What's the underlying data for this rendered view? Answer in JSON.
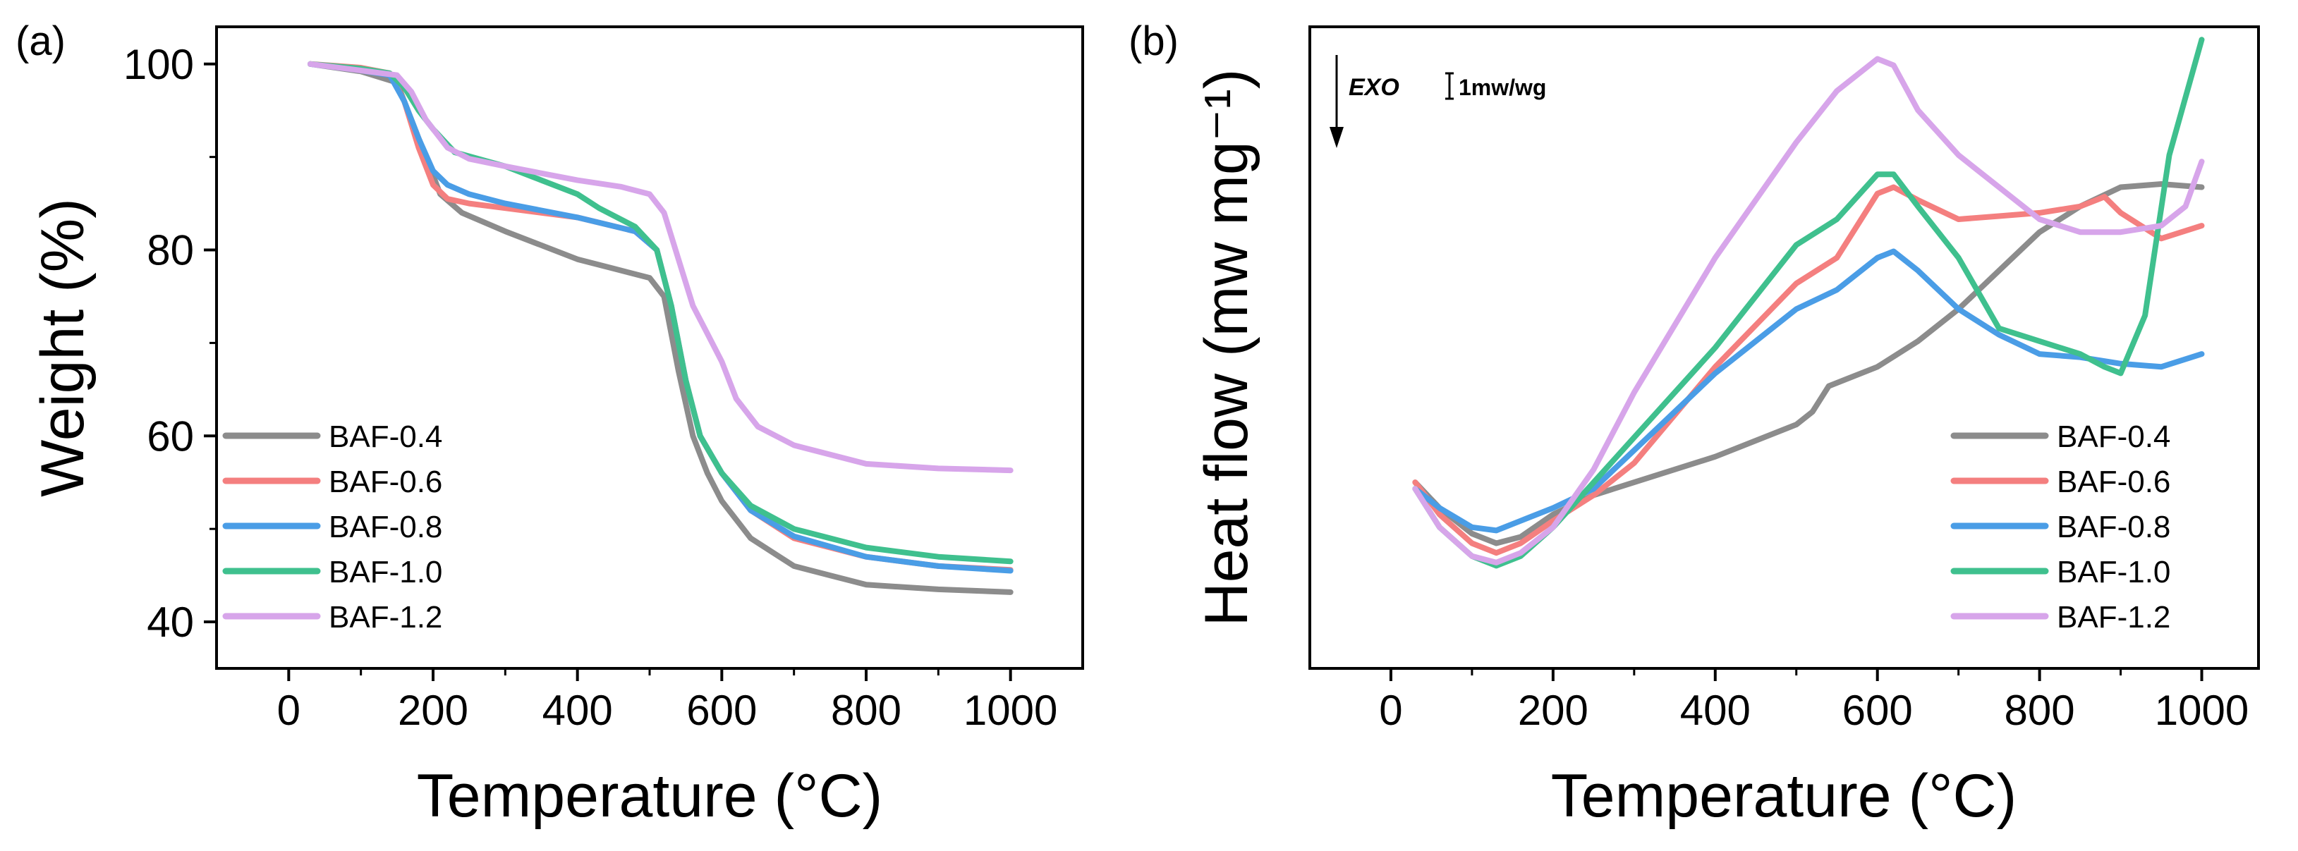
{
  "chart_data": [
    {
      "panel_label": "(a)",
      "type": "line",
      "title": "",
      "xlabel": "Temperature (°C)",
      "ylabel": "Weight (%)",
      "xlim": [
        -100,
        1100
      ],
      "ylim": [
        35,
        104
      ],
      "xticks": [
        0,
        200,
        400,
        600,
        800,
        1000
      ],
      "yticks": [
        40,
        60,
        80,
        100
      ],
      "xtick_labels": [
        "0",
        "200",
        "400",
        "600",
        "800",
        "1000"
      ],
      "ytick_labels": [
        "40",
        "60",
        "80",
        "100"
      ],
      "legend_position": "bottom-left",
      "series": [
        {
          "name": "BAF-0.4",
          "color": "#8c8c8c",
          "x": [
            30,
            100,
            150,
            170,
            190,
            210,
            240,
            300,
            400,
            450,
            500,
            520,
            540,
            560,
            580,
            600,
            640,
            680,
            700,
            750,
            800,
            900,
            1000
          ],
          "y": [
            100,
            99.2,
            98,
            94,
            90,
            86,
            84,
            82,
            79,
            78,
            77,
            75,
            67,
            60,
            56,
            53,
            49,
            47,
            46,
            45,
            44,
            43.5,
            43.2
          ]
        },
        {
          "name": "BAF-0.6",
          "color": "#f47f7f",
          "x": [
            30,
            100,
            140,
            160,
            180,
            200,
            220,
            250,
            300,
            400,
            480,
            510,
            530,
            550,
            570,
            600,
            640,
            700,
            800,
            900,
            1000
          ],
          "y": [
            100,
            99.6,
            99,
            96,
            91,
            87,
            85.5,
            85,
            84.5,
            83.5,
            82,
            80,
            74,
            66,
            60,
            56,
            52,
            49,
            47,
            46,
            45.6
          ]
        },
        {
          "name": "BAF-0.8",
          "color": "#4a9de6",
          "x": [
            30,
            100,
            140,
            160,
            180,
            200,
            220,
            250,
            300,
            400,
            480,
            510,
            530,
            550,
            570,
            600,
            640,
            700,
            800,
            900,
            1000
          ],
          "y": [
            100,
            99.3,
            98.8,
            96,
            92,
            88.5,
            87,
            86,
            85,
            83.5,
            82,
            80,
            74,
            66,
            60,
            56,
            52,
            49.2,
            47,
            46,
            45.5
          ]
        },
        {
          "name": "BAF-1.0",
          "color": "#3fc08e",
          "x": [
            30,
            100,
            140,
            160,
            180,
            200,
            230,
            300,
            350,
            400,
            430,
            480,
            510,
            530,
            550,
            570,
            600,
            640,
            700,
            800,
            900,
            1000
          ],
          "y": [
            100,
            99.5,
            99,
            97.5,
            95,
            93,
            90.5,
            89,
            87.5,
            86,
            84.5,
            82.5,
            80,
            74,
            66,
            60,
            56,
            52.5,
            50,
            48,
            47,
            46.5
          ]
        },
        {
          "name": "BAF-1.2",
          "color": "#d7a5ea",
          "x": [
            30,
            100,
            150,
            170,
            190,
            220,
            250,
            300,
            400,
            460,
            500,
            520,
            540,
            560,
            580,
            600,
            620,
            650,
            700,
            800,
            900,
            1000
          ],
          "y": [
            100,
            99.3,
            98.8,
            97,
            94,
            91,
            89.8,
            89,
            87.5,
            86.8,
            86,
            84,
            79,
            74,
            71,
            68,
            64,
            61,
            59,
            57,
            56.5,
            56.3
          ]
        }
      ]
    },
    {
      "panel_label": "(b)",
      "type": "line",
      "title": "",
      "xlabel": "Temperature (°C)",
      "ylabel": "Heat flow (mw mg⁻¹)",
      "xlim": [
        -100,
        1070
      ],
      "ylim": [
        0,
        100
      ],
      "xticks": [
        0,
        200,
        400,
        600,
        800,
        1000
      ],
      "xtick_labels": [
        "0",
        "200",
        "400",
        "600",
        "800",
        "1000"
      ],
      "yticks": [],
      "annotation_exo": "EXO",
      "annotation_scale": "1mw/wg",
      "legend_position": "right",
      "series": [
        {
          "name": "BAF-0.4",
          "color": "#8c8c8c",
          "x": [
            30,
            60,
            100,
            130,
            160,
            200,
            250,
            300,
            400,
            500,
            520,
            540,
            560,
            600,
            650,
            700,
            800,
            850,
            900,
            950,
            1000
          ],
          "y": [
            29,
            25,
            21,
            19.5,
            20.5,
            24,
            27,
            29,
            33,
            38,
            40,
            44,
            45,
            47,
            51,
            56,
            68,
            72,
            75,
            75.5,
            75
          ]
        },
        {
          "name": "BAF-0.6",
          "color": "#f47f7f",
          "x": [
            30,
            60,
            100,
            130,
            160,
            200,
            250,
            300,
            400,
            500,
            550,
            600,
            620,
            650,
            700,
            750,
            800,
            850,
            880,
            900,
            950,
            1000
          ],
          "y": [
            29,
            24,
            19.5,
            18,
            19.5,
            23,
            27,
            32,
            47,
            60,
            64,
            74,
            75,
            73,
            70,
            70.5,
            71,
            72,
            73.5,
            71,
            67,
            69
          ]
        },
        {
          "name": "BAF-0.8",
          "color": "#4a9de6",
          "x": [
            30,
            60,
            100,
            130,
            160,
            200,
            250,
            300,
            400,
            500,
            550,
            600,
            620,
            650,
            700,
            750,
            800,
            850,
            900,
            950,
            1000
          ],
          "y": [
            28,
            25,
            22,
            21.5,
            23,
            25,
            28,
            34,
            46,
            56,
            59,
            64,
            65,
            62,
            56,
            52,
            49,
            48.5,
            47.5,
            47,
            49
          ]
        },
        {
          "name": "BAF-1.0",
          "color": "#3fc08e",
          "x": [
            30,
            60,
            100,
            130,
            160,
            200,
            250,
            300,
            400,
            500,
            550,
            600,
            620,
            650,
            700,
            750,
            800,
            850,
            880,
            900,
            930,
            960,
            1000
          ],
          "y": [
            28,
            22,
            17.5,
            16,
            17.5,
            22,
            29,
            36,
            50,
            66,
            70,
            77,
            77,
            72,
            64,
            53,
            51,
            49,
            47,
            46,
            55,
            80,
            98
          ]
        },
        {
          "name": "BAF-1.2",
          "color": "#d7a5ea",
          "x": [
            30,
            60,
            100,
            130,
            160,
            200,
            250,
            300,
            400,
            500,
            550,
            600,
            620,
            650,
            700,
            750,
            800,
            850,
            900,
            950,
            980,
            1000
          ],
          "y": [
            28,
            22,
            17.5,
            16.5,
            18,
            22,
            31,
            43,
            64,
            82,
            90,
            95,
            94,
            87,
            80,
            75,
            70,
            68,
            68,
            69,
            72,
            79
          ]
        }
      ]
    }
  ]
}
